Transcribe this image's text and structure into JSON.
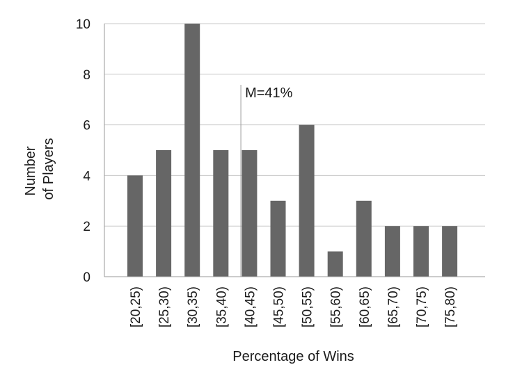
{
  "chart_data": {
    "type": "bar",
    "title": "",
    "xlabel": "Percentage of Wins",
    "ylabel_lines": [
      "Number",
      "of Players"
    ],
    "categories": [
      "[20,25)",
      "[25,30)",
      "[30,35)",
      "[35,40)",
      "[40,45)",
      "[45,50)",
      "[50,55)",
      "[55,60)",
      "[60,65)",
      "[65,70)",
      "[70,75)",
      "[75,80)"
    ],
    "values": [
      4,
      5,
      10,
      5,
      5,
      3,
      6,
      1,
      3,
      2,
      2,
      2
    ],
    "ylim": [
      0,
      10
    ],
    "yticks": [
      0,
      2,
      4,
      6,
      8,
      10
    ],
    "grid": true,
    "bar_color": "#666666",
    "grid_color": "#c8c8c8",
    "annotation": {
      "label": "M=41%",
      "x_value": 41
    }
  }
}
